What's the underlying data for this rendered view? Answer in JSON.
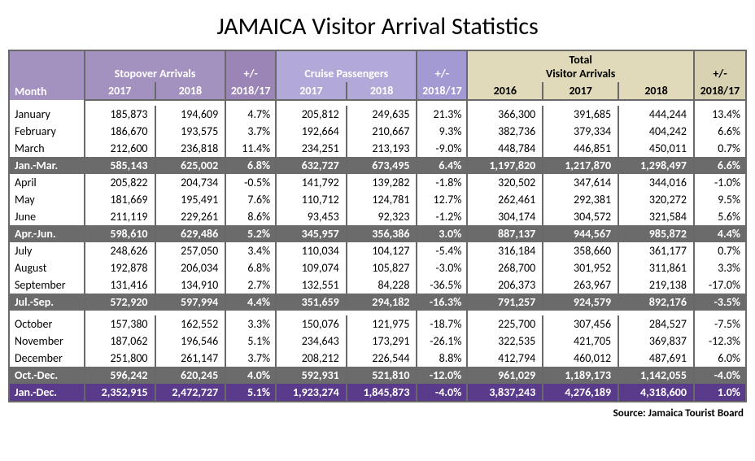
{
  "title": "JAMAICA Visitor Arrival Statistics",
  "source": "Source: Jamaica Tourist Board",
  "headers": {
    "month": "Month",
    "stopover": "Stopover Arrivals",
    "cruise": "Cruise Passengers",
    "total": "Total\nVisitor Arrivals",
    "pm": "+/-\n2018/17",
    "y2016": "2016",
    "y2017": "2017",
    "y2018": "2018"
  },
  "colors": {
    "stopover_bg": "#a391c0",
    "pm1_bg": "#9b84b6",
    "cruise_bg": "#b3a9d8",
    "pm2_bg": "#a39ad4",
    "total_bg": "#e0daba",
    "pm3_bg": "#d8d2b2",
    "subtotal_bg": "#6b6b6b",
    "year_bg": "#5a3a8a",
    "border": "#696969",
    "text": "#000000"
  },
  "rows": [
    {
      "t": "d",
      "m": "January",
      "s17": "185,873",
      "s18": "194,609",
      "sp": "4.7%",
      "c17": "205,812",
      "c18": "249,635",
      "cp": "21.3%",
      "t16": "366,300",
      "t17": "391,685",
      "t18": "444,244",
      "tp": "13.4%"
    },
    {
      "t": "d",
      "m": "February",
      "s17": "186,670",
      "s18": "193,575",
      "sp": "3.7%",
      "c17": "192,664",
      "c18": "210,667",
      "cp": "9.3%",
      "t16": "382,736",
      "t17": "379,334",
      "t18": "404,242",
      "tp": "6.6%"
    },
    {
      "t": "d",
      "m": "March",
      "s17": "212,600",
      "s18": "236,818",
      "sp": "11.4%",
      "c17": "234,251",
      "c18": "213,193",
      "cp": "-9.0%",
      "t16": "448,784",
      "t17": "446,851",
      "t18": "450,011",
      "tp": "0.7%"
    },
    {
      "t": "s",
      "m": "Jan.-Mar.",
      "s17": "585,143",
      "s18": "625,002",
      "sp": "6.8%",
      "c17": "632,727",
      "c18": "673,495",
      "cp": "6.4%",
      "t16": "1,197,820",
      "t17": "1,217,870",
      "t18": "1,298,497",
      "tp": "6.6%"
    },
    {
      "t": "d",
      "m": "April",
      "s17": "205,822",
      "s18": "204,734",
      "sp": "-0.5%",
      "c17": "141,792",
      "c18": "139,282",
      "cp": "-1.8%",
      "t16": "320,502",
      "t17": "347,614",
      "t18": "344,016",
      "tp": "-1.0%"
    },
    {
      "t": "d",
      "m": "May",
      "s17": "181,669",
      "s18": "195,491",
      "sp": "7.6%",
      "c17": "110,712",
      "c18": "124,781",
      "cp": "12.7%",
      "t16": "262,461",
      "t17": "292,381",
      "t18": "320,272",
      "tp": "9.5%"
    },
    {
      "t": "d",
      "m": "June",
      "s17": "211,119",
      "s18": "229,261",
      "sp": "8.6%",
      "c17": "93,453",
      "c18": "92,323",
      "cp": "-1.2%",
      "t16": "304,174",
      "t17": "304,572",
      "t18": "321,584",
      "tp": "5.6%"
    },
    {
      "t": "s",
      "m": "Apr.-Jun.",
      "s17": "598,610",
      "s18": "629,486",
      "sp": "5.2%",
      "c17": "345,957",
      "c18": "356,386",
      "cp": "3.0%",
      "t16": "887,137",
      "t17": "944,567",
      "t18": "985,872",
      "tp": "4.4%"
    },
    {
      "t": "d",
      "m": "July",
      "s17": "248,626",
      "s18": "257,050",
      "sp": "3.4%",
      "c17": "110,034",
      "c18": "104,127",
      "cp": "-5.4%",
      "t16": "316,184",
      "t17": "358,660",
      "t18": "361,177",
      "tp": "0.7%"
    },
    {
      "t": "d",
      "m": "August",
      "s17": "192,878",
      "s18": "206,034",
      "sp": "6.8%",
      "c17": "109,074",
      "c18": "105,827",
      "cp": "-3.0%",
      "t16": "268,700",
      "t17": "301,952",
      "t18": "311,861",
      "tp": "3.3%"
    },
    {
      "t": "d",
      "m": "September",
      "s17": "131,416",
      "s18": "134,910",
      "sp": "2.7%",
      "c17": "132,551",
      "c18": "84,228",
      "cp": "-36.5%",
      "t16": "206,373",
      "t17": "263,967",
      "t18": "219,138",
      "tp": "-17.0%"
    },
    {
      "t": "s",
      "m": "Jul.-Sep.",
      "s17": "572,920",
      "s18": "597,994",
      "sp": "4.4%",
      "c17": "351,659",
      "c18": "294,182",
      "cp": "-16.3%",
      "t16": "791,257",
      "t17": "924,579",
      "t18": "892,176",
      "tp": "-3.5%"
    },
    {
      "t": "sp"
    },
    {
      "t": "d",
      "m": "October",
      "s17": "157,380",
      "s18": "162,552",
      "sp": "3.3%",
      "c17": "150,076",
      "c18": "121,975",
      "cp": "-18.7%",
      "t16": "225,700",
      "t17": "307,456",
      "t18": "284,527",
      "tp": "-7.5%"
    },
    {
      "t": "d",
      "m": "November",
      "s17": "187,062",
      "s18": "196,546",
      "sp": "5.1%",
      "c17": "234,643",
      "c18": "173,291",
      "cp": "-26.1%",
      "t16": "322,535",
      "t17": "421,705",
      "t18": "369,837",
      "tp": "-12.3%"
    },
    {
      "t": "d",
      "m": "December",
      "s17": "251,800",
      "s18": "261,147",
      "sp": "3.7%",
      "c17": "208,212",
      "c18": "226,544",
      "cp": "8.8%",
      "t16": "412,794",
      "t17": "460,012",
      "t18": "487,691",
      "tp": "6.0%"
    },
    {
      "t": "s",
      "m": "Oct.-Dec.",
      "s17": "596,242",
      "s18": "620,245",
      "sp": "4.0%",
      "c17": "592,931",
      "c18": "521,810",
      "cp": "-12.0%",
      "t16": "961,029",
      "t17": "1,189,173",
      "t18": "1,142,055",
      "tp": "-4.0%"
    },
    {
      "t": "y",
      "m": "Jan.-Dec.",
      "s17": "2,352,915",
      "s18": "2,472,727",
      "sp": "5.1%",
      "c17": "1,923,274",
      "c18": "1,845,873",
      "cp": "-4.0%",
      "t16": "3,837,243",
      "t17": "4,276,189",
      "t18": "4,318,600",
      "tp": "1.0%"
    }
  ]
}
